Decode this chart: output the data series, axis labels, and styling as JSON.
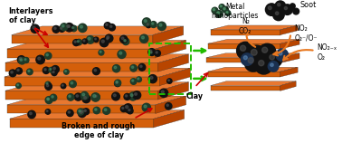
{
  "background_color": "#ffffff",
  "labels": {
    "interlayers": "Interlayers\nof clay",
    "broken_edge": "Broken and rough\nedge of clay",
    "clay": "Clay",
    "metal_np": "Metal\nnanoparticles",
    "soot": "Soot",
    "n2_co2": "N₂\nCO₂",
    "no2_o2": "NO₂\nO₂⁻/O⁻",
    "no2x_o2": "NO₂₋ₓ\nO₂"
  },
  "clay_orange": "#D45F0A",
  "clay_light": "#E87830",
  "clay_dark": "#B84500",
  "clay_top": "#C0C0A0",
  "soot_dark": "#111111",
  "soot_mid": "#444444",
  "metal_dark": "#1a3a4a",
  "metal_blue": "#5080a0",
  "metal_green": "#304a30",
  "metal_green_hi": "#508050",
  "arrow_red": "#cc0000",
  "arrow_green": "#22bb00",
  "arrow_orange": "#e87820",
  "figsize": [
    3.78,
    1.58
  ],
  "dpi": 100
}
